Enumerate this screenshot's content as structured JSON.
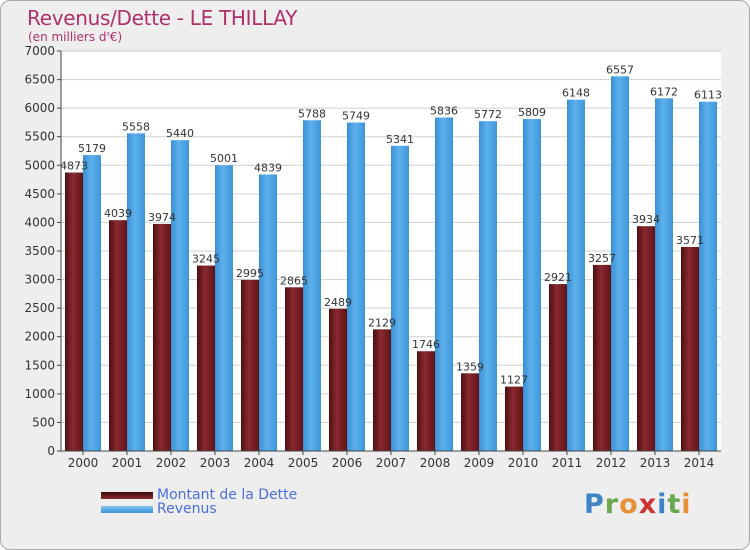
{
  "chart_data": {
    "type": "bar",
    "title": "Revenus/Dette - LE THILLAY",
    "subtitle": "(en milliers d'€)",
    "categories": [
      "2000",
      "2001",
      "2002",
      "2003",
      "2004",
      "2005",
      "2006",
      "2007",
      "2008",
      "2009",
      "2010",
      "2011",
      "2012",
      "2013",
      "2014"
    ],
    "series": [
      {
        "name": "Montant de la Dette",
        "color": "#7a1e24",
        "values": [
          4873,
          4039,
          3974,
          3245,
          2995,
          2865,
          2489,
          2129,
          1746,
          1359,
          1127,
          2921,
          3257,
          3934,
          3571
        ],
        "labels": [
          "4873",
          "4039",
          "3974",
          "3245",
          "2995",
          "2865",
          "2489",
          "2129",
          "1746",
          "1359",
          "1127",
          "2921",
          "3257",
          "3934",
          "3571"
        ]
      },
      {
        "name": "Revenus",
        "color": "#4ea7e6",
        "values": [
          5179,
          5558,
          5440,
          5001,
          4839,
          5788,
          5749,
          5341,
          5836,
          5772,
          5809,
          6148,
          6557,
          6172,
          6113
        ],
        "labels": [
          "5179",
          "5558",
          "5440",
          "5001",
          "4839",
          "5788",
          "5749",
          "5341",
          "5836",
          "5772",
          "5809",
          "6148",
          "6557",
          "6172",
          "6113"
        ]
      }
    ],
    "ylim": [
      0,
      7000
    ],
    "yticks": [
      "0",
      "500",
      "1000",
      "1500",
      "2000",
      "2500",
      "3000",
      "3500",
      "4000",
      "4500",
      "5000",
      "5500",
      "6000",
      "6500",
      "7000"
    ],
    "grid": true,
    "legend_position": "bottom-left"
  },
  "branding": {
    "logo_text": "Proxiti"
  }
}
